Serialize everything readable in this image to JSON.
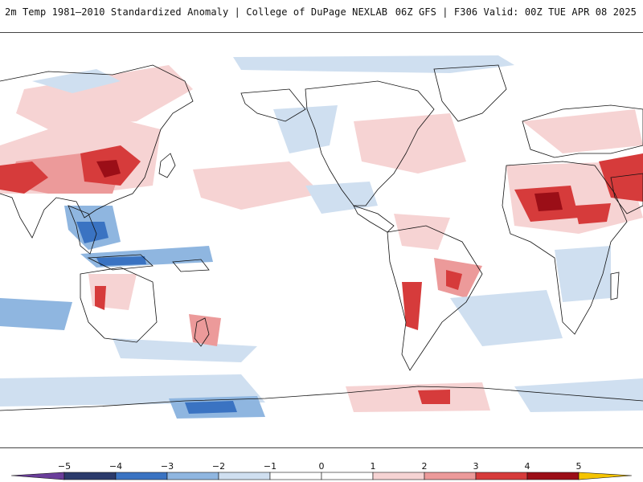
{
  "header": {
    "title_left": "2m Temp 1981–2010 Standardized Anomaly | College of DuPage NEXLAB",
    "title_right": "06Z GFS | F306 Valid: 00Z TUE APR 08 2025"
  },
  "colorbar": {
    "tick_labels": [
      "−5",
      "−4",
      "−3",
      "−2",
      "−1",
      "0",
      "1",
      "2",
      "3",
      "4",
      "5"
    ],
    "colors": [
      "#6a3d9a",
      "#2b3a6b",
      "#3a73c2",
      "#8fb6e0",
      "#cfdff0",
      "#ffffff",
      "#f6d3d3",
      "#ec9a9a",
      "#d63b3b",
      "#9b0e17",
      "#f5c400"
    ]
  },
  "map": {
    "variable": "2m temperature standardized anomaly",
    "projection": "equirectangular",
    "palette": {
      "ocean": "#ffffff",
      "land_outline": "#111111",
      "warm_light": "#f6d3d3",
      "warm_mid": "#ec9a9a",
      "warm_strong": "#d63b3b",
      "warm_extreme": "#9b0e17",
      "cold_light": "#cfdff0",
      "cold_mid": "#8fb6e0",
      "cold_strong": "#3a73c2"
    }
  }
}
